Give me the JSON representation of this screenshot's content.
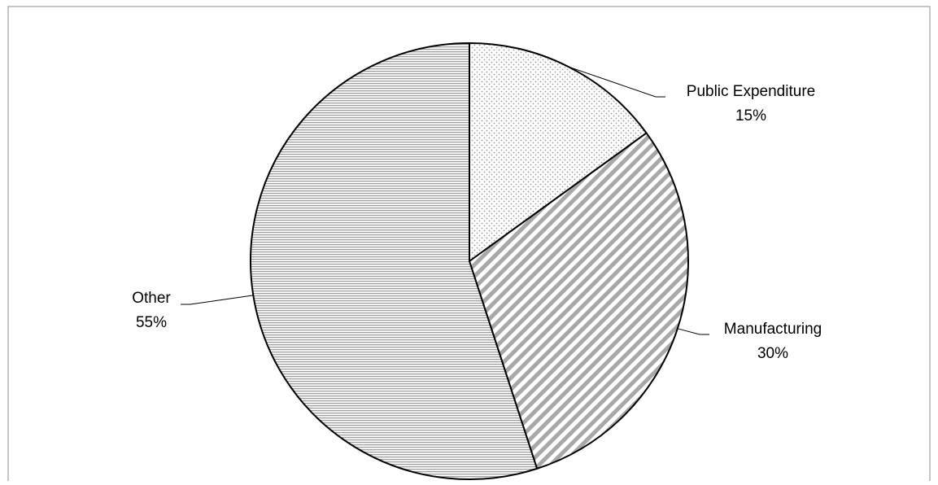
{
  "chart_data": {
    "type": "pie",
    "title": "",
    "start_angle_deg": 0,
    "direction": "clockwise",
    "slices": [
      {
        "name": "Public Expenditure",
        "value": 15,
        "label": "15%",
        "pattern": "dots"
      },
      {
        "name": "Manufacturing",
        "value": 30,
        "label": "30%",
        "pattern": "diagonal-stripes"
      },
      {
        "name": "Other",
        "value": 55,
        "label": "55%",
        "pattern": "horizontal-lines"
      }
    ],
    "legend": "none",
    "colors": {
      "outline": "#000000",
      "pattern_ink": "#9a9a9a",
      "background": "#ffffff",
      "frame": "#8c8c8c"
    }
  }
}
